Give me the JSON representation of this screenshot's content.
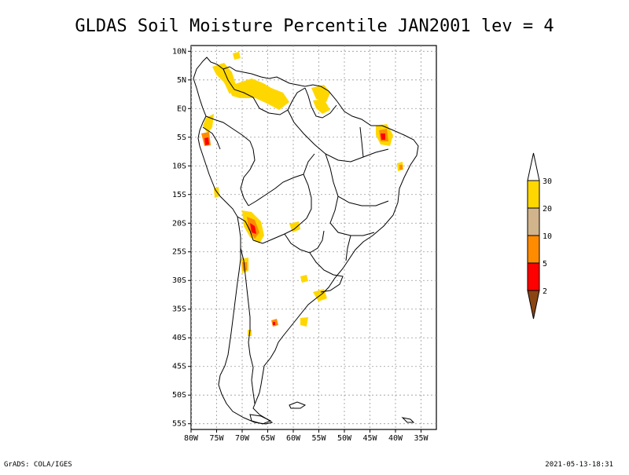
{
  "title": "GLDAS Soil Moisture Percentile JAN2001 lev = 4",
  "footer": {
    "left": "GrADS: COLA/IGES",
    "right": "2021-05-13-18:31"
  },
  "map": {
    "lon_range": [
      -80,
      -32
    ],
    "lat_range": [
      -56,
      11
    ],
    "lat_labels": [
      "10N",
      "5N",
      "EQ",
      "5S",
      "10S",
      "15S",
      "20S",
      "25S",
      "30S",
      "35S",
      "40S",
      "45S",
      "50S",
      "55S"
    ],
    "lon_labels": [
      "80W",
      "75W",
      "70W",
      "65W",
      "60W",
      "55W",
      "50W",
      "45W",
      "40W",
      "35W"
    ],
    "gridlines": true
  },
  "legend": {
    "levels": [
      "30",
      "20",
      "10",
      "5",
      "2"
    ],
    "colors": {
      "above_30": "#ffffff",
      "20_30": "#ffd700",
      "10_20": "#d2b48c",
      "5_10": "#ff8c00",
      "2_5": "#ff0000",
      "below_2": "#8b4513"
    }
  }
}
